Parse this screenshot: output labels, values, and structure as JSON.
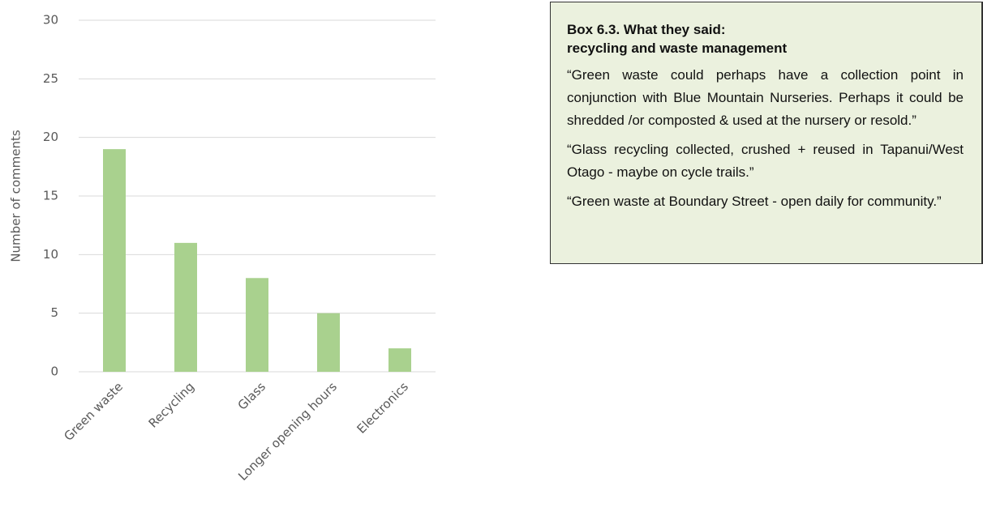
{
  "chart_data": {
    "type": "bar",
    "y_label": "Number of comments",
    "categories": [
      "Green waste",
      "Recycling",
      "Glass",
      "Longer opening hours",
      "Electronics"
    ],
    "values": [
      19,
      11,
      8,
      5,
      2
    ],
    "color": "#a9d18e",
    "ylim": [
      0,
      30
    ],
    "yticks": [
      0,
      5,
      10,
      15,
      20,
      25,
      30
    ],
    "grid": true
  },
  "text_box": {
    "title_lines": [
      "Box 6.3. What they said:",
      "recycling and waste management"
    ],
    "paragraphs": [
      "“Green waste could perhaps have a collection point in conjunction with Blue Mountain Nurseries. Perhaps it could be shredded /or composted & used at the nursery or resold.”",
      "“Glass recycling collected, crushed + reused in Tapanui/West Otago - maybe on cycle trails.”",
      "“Green waste at Boundary Street - open daily for community.”"
    ]
  }
}
